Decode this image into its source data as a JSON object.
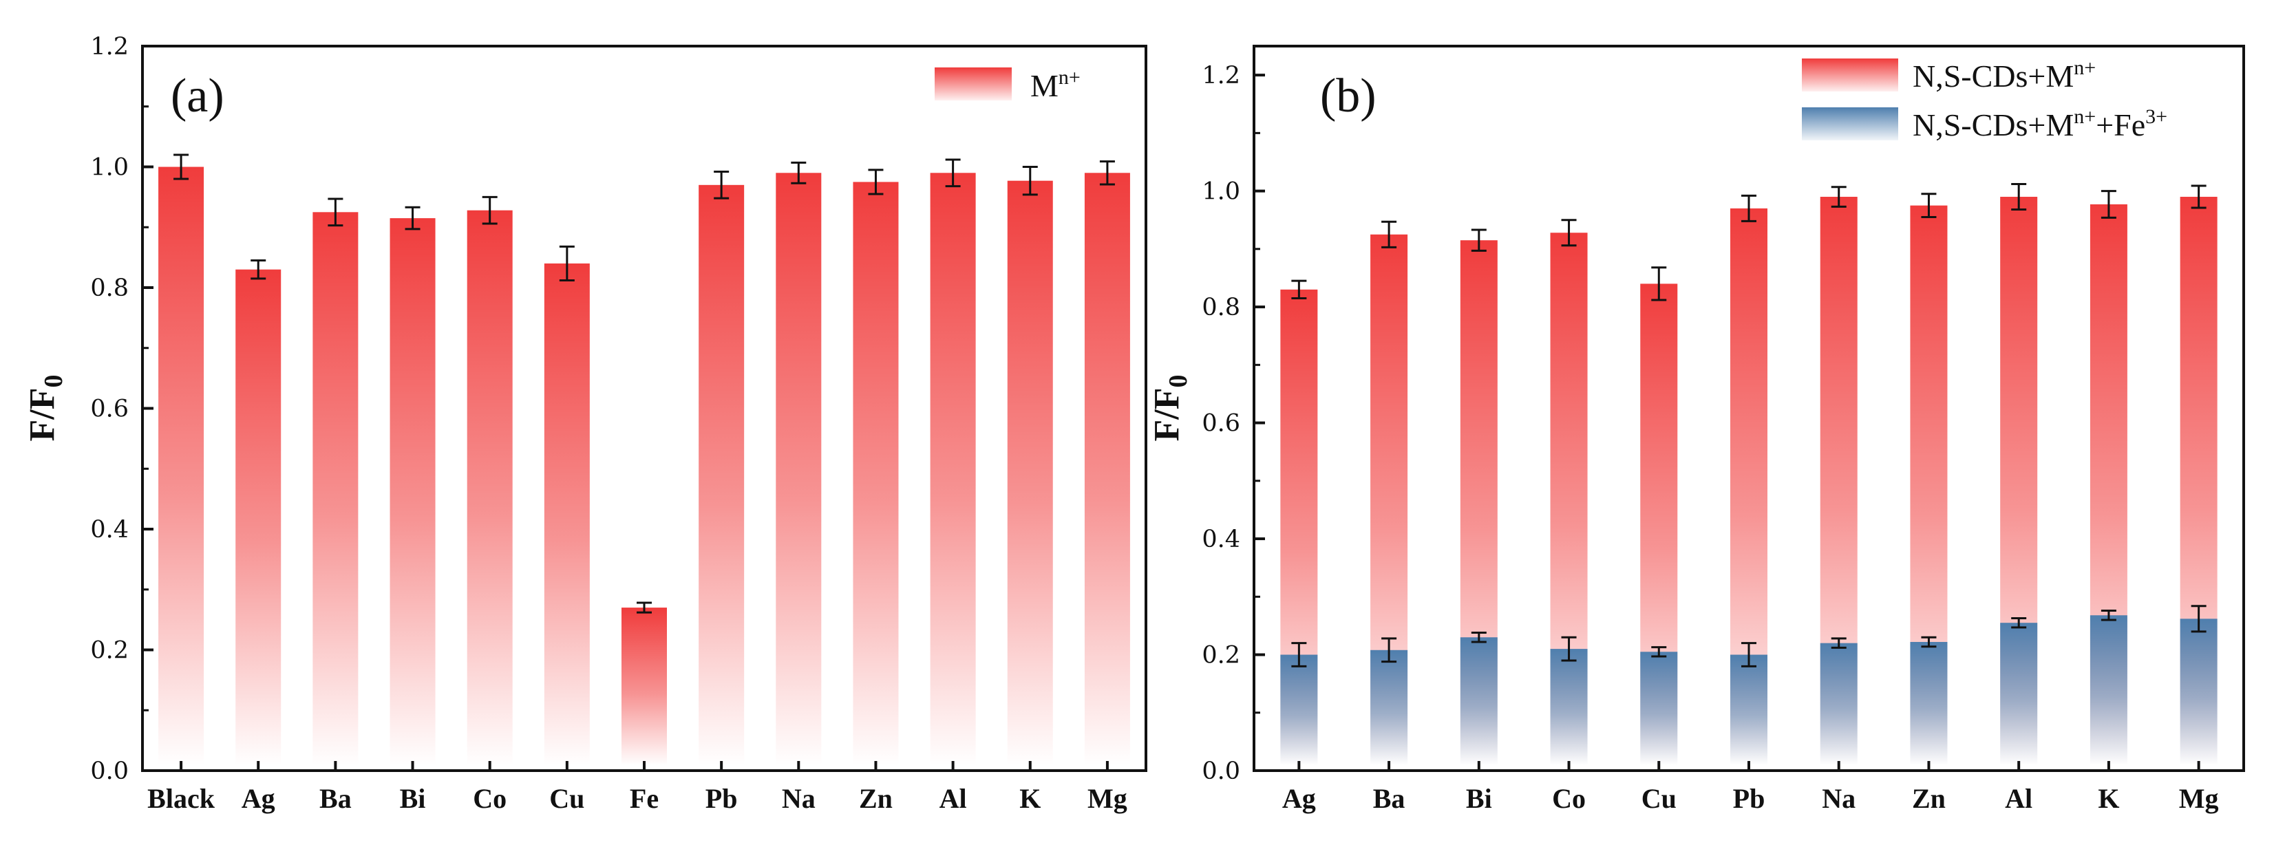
{
  "colors": {
    "red": "#f03c3c",
    "blue": "#4f7fae",
    "axis": "#111111"
  },
  "chart_data": [
    {
      "type": "bar",
      "panel": "(a)",
      "ylabel": "F/F0",
      "ylabel_main": "F/F",
      "ylabel_sub": "0",
      "ylim": [
        0.0,
        1.2
      ],
      "yticks": [
        0.0,
        0.2,
        0.4,
        0.6,
        0.8,
        1.0,
        1.2
      ],
      "ytick_labels": [
        "0.0",
        "0.2",
        "0.4",
        "0.6",
        "0.8",
        "1.0",
        "1.2"
      ],
      "categories": [
        "Black",
        "Ag",
        "Ba",
        "Bi",
        "Co",
        "Cu",
        "Fe",
        "Pb",
        "Na",
        "Zn",
        "Al",
        "K",
        "Mg"
      ],
      "series": [
        {
          "name": "Mn+",
          "legend_main": "M",
          "legend_sup": "n+",
          "color": "red",
          "values": [
            1.0,
            0.83,
            0.925,
            0.915,
            0.928,
            0.84,
            0.27,
            0.97,
            0.99,
            0.975,
            0.99,
            0.977,
            0.99
          ],
          "errors": [
            0.02,
            0.015,
            0.022,
            0.018,
            0.022,
            0.028,
            0.008,
            0.022,
            0.017,
            0.02,
            0.022,
            0.023,
            0.019
          ]
        }
      ],
      "legend": "top-right"
    },
    {
      "type": "bar",
      "panel": "(b)",
      "ylabel": "F/F0",
      "ylabel_main": "F/F",
      "ylabel_sub": "0",
      "ylim": [
        0.0,
        1.25
      ],
      "yticks": [
        0.0,
        0.2,
        0.4,
        0.6,
        0.8,
        1.0,
        1.2
      ],
      "ytick_labels": [
        "0.0",
        "0.2",
        "0.4",
        "0.6",
        "0.8",
        "1.0",
        "1.2"
      ],
      "categories": [
        "Ag",
        "Ba",
        "Bi",
        "Co",
        "Cu",
        "Pb",
        "Na",
        "Zn",
        "Al",
        "K",
        "Mg"
      ],
      "series": [
        {
          "name": "N,S-CDs+Mn+",
          "legend_main": "N,S-CDs+M",
          "legend_sup": "n+",
          "color": "red",
          "values": [
            0.83,
            0.925,
            0.915,
            0.928,
            0.84,
            0.97,
            0.99,
            0.975,
            0.99,
            0.977,
            0.99
          ],
          "errors": [
            0.015,
            0.022,
            0.018,
            0.022,
            0.028,
            0.022,
            0.017,
            0.02,
            0.022,
            0.023,
            0.019
          ]
        },
        {
          "name": "N,S-CDs+Mn++Fe3+",
          "legend_main": "N,S-CDs+M",
          "legend_sup": "n+",
          "legend_mid": "+Fe",
          "legend_sup2": "3+",
          "color": "blue",
          "values": [
            0.2,
            0.208,
            0.23,
            0.21,
            0.205,
            0.2,
            0.22,
            0.222,
            0.255,
            0.268,
            0.262
          ],
          "errors": [
            0.02,
            0.02,
            0.008,
            0.02,
            0.008,
            0.02,
            0.008,
            0.008,
            0.008,
            0.008,
            0.022
          ]
        }
      ],
      "legend": "top-right"
    }
  ]
}
